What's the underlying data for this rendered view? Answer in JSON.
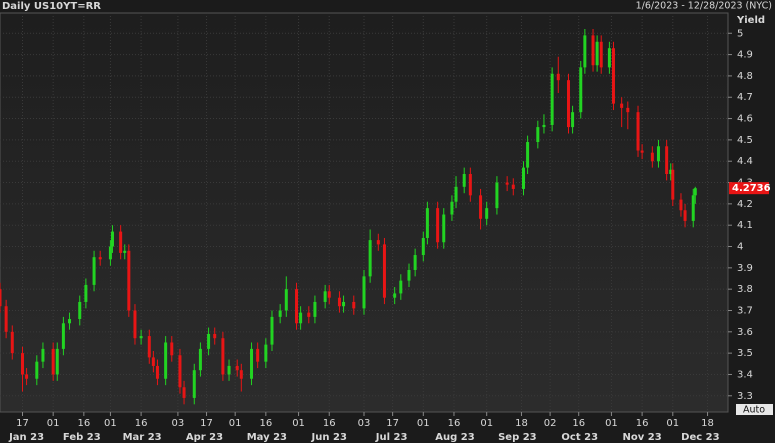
{
  "chart_data": {
    "type": "candlestick",
    "title": "Daily US10YT=RR",
    "subtitle": "1/6/2023 - 12/28/2023 (NYC)",
    "y_label": "Yield",
    "auto_label": "Auto",
    "up_color": "#22d422",
    "down_color": "#e81515",
    "last_color": "#e81515",
    "grid": true,
    "xlim": [
      "2023-01-06",
      "2023-12-28"
    ],
    "ylim": [
      3.224,
      5.095
    ],
    "yticks": [
      3.3,
      3.4,
      3.5,
      3.6,
      3.7,
      3.8,
      3.9,
      4,
      4.1,
      4.2,
      4.3,
      4.4,
      4.5,
      4.6,
      4.7,
      4.8,
      4.9,
      5
    ],
    "xticks": [
      {
        "value": "2023-01-17",
        "label": "17"
      },
      {
        "value": "2023-02-01",
        "label": "01"
      },
      {
        "value": "2023-02-16",
        "label": "16"
      },
      {
        "value": "2023-03-01",
        "label": "01"
      },
      {
        "value": "2023-03-16",
        "label": "16"
      },
      {
        "value": "2023-04-03",
        "label": "03"
      },
      {
        "value": "2023-04-17",
        "label": "17"
      },
      {
        "value": "2023-05-01",
        "label": "01"
      },
      {
        "value": "2023-05-16",
        "label": "16"
      },
      {
        "value": "2023-06-01",
        "label": "01"
      },
      {
        "value": "2023-06-16",
        "label": "16"
      },
      {
        "value": "2023-07-03",
        "label": "03"
      },
      {
        "value": "2023-07-17",
        "label": "17"
      },
      {
        "value": "2023-08-01",
        "label": "01"
      },
      {
        "value": "2023-08-16",
        "label": "16"
      },
      {
        "value": "2023-09-01",
        "label": "01"
      },
      {
        "value": "2023-09-18",
        "label": "18"
      },
      {
        "value": "2023-10-02",
        "label": "02"
      },
      {
        "value": "2023-10-16",
        "label": "16"
      },
      {
        "value": "2023-11-01",
        "label": "01"
      },
      {
        "value": "2023-11-16",
        "label": "16"
      },
      {
        "value": "2023-12-01",
        "label": "01"
      },
      {
        "value": "2023-12-18",
        "label": "18"
      }
    ],
    "month_labels": [
      {
        "value": "2023-01",
        "label": "Jan 23"
      },
      {
        "value": "2023-02",
        "label": "Feb 23"
      },
      {
        "value": "2023-03",
        "label": "Mar 23"
      },
      {
        "value": "2023-04",
        "label": "Apr 23"
      },
      {
        "value": "2023-05",
        "label": "May 23"
      },
      {
        "value": "2023-06",
        "label": "Jun 23"
      },
      {
        "value": "2023-07",
        "label": "Jul 23"
      },
      {
        "value": "2023-08",
        "label": "Aug 23"
      },
      {
        "value": "2023-09",
        "label": "Sep 23"
      },
      {
        "value": "2023-10",
        "label": "Oct 23"
      },
      {
        "value": "2023-11",
        "label": "Nov 23"
      },
      {
        "value": "2023-12",
        "label": "Dec 23"
      }
    ],
    "x": [
      "2023-01-06",
      "2023-01-09",
      "2023-01-12",
      "2023-01-17",
      "2023-01-19",
      "2023-01-24",
      "2023-01-27",
      "2023-02-01",
      "2023-02-03",
      "2023-02-06",
      "2023-02-09",
      "2023-02-14",
      "2023-02-17",
      "2023-02-21",
      "2023-02-24",
      "2023-03-01",
      "2023-03-02",
      "2023-03-06",
      "2023-03-08",
      "2023-03-10",
      "2023-03-13",
      "2023-03-16",
      "2023-03-20",
      "2023-03-22",
      "2023-03-24",
      "2023-03-28",
      "2023-03-31",
      "2023-04-04",
      "2023-04-06",
      "2023-04-11",
      "2023-04-14",
      "2023-04-18",
      "2023-04-21",
      "2023-04-25",
      "2023-04-28",
      "2023-05-02",
      "2023-05-04",
      "2023-05-09",
      "2023-05-12",
      "2023-05-16",
      "2023-05-19",
      "2023-05-23",
      "2023-05-26",
      "2023-05-31",
      "2023-06-02",
      "2023-06-06",
      "2023-06-09",
      "2023-06-14",
      "2023-06-16",
      "2023-06-21",
      "2023-06-23",
      "2023-06-28",
      "2023-07-03",
      "2023-07-06",
      "2023-07-10",
      "2023-07-13",
      "2023-07-18",
      "2023-07-21",
      "2023-07-25",
      "2023-07-28",
      "2023-08-01",
      "2023-08-03",
      "2023-08-08",
      "2023-08-11",
      "2023-08-15",
      "2023-08-17",
      "2023-08-21",
      "2023-08-24",
      "2023-08-29",
      "2023-09-01",
      "2023-09-06",
      "2023-09-11",
      "2023-09-14",
      "2023-09-19",
      "2023-09-21",
      "2023-09-26",
      "2023-09-29",
      "2023-10-03",
      "2023-10-06",
      "2023-10-11",
      "2023-10-13",
      "2023-10-17",
      "2023-10-19",
      "2023-10-23",
      "2023-10-25",
      "2023-10-27",
      "2023-10-31",
      "2023-11-02",
      "2023-11-06",
      "2023-11-09",
      "2023-11-14",
      "2023-11-16",
      "2023-11-21",
      "2023-11-24",
      "2023-11-28",
      "2023-11-30",
      "2023-12-01",
      "2023-12-05",
      "2023-12-07",
      "2023-12-11",
      "2023-12-12"
    ],
    "open": [
      3.8,
      3.72,
      3.6,
      3.5,
      3.4,
      3.38,
      3.46,
      3.52,
      3.4,
      3.52,
      3.64,
      3.66,
      3.74,
      3.82,
      3.95,
      3.94,
      4.0,
      4.07,
      3.97,
      3.98,
      3.7,
      3.57,
      3.58,
      3.48,
      3.44,
      3.38,
      3.55,
      3.49,
      3.34,
      3.29,
      3.42,
      3.52,
      3.59,
      3.57,
      3.4,
      3.44,
      3.42,
      3.38,
      3.52,
      3.46,
      3.54,
      3.67,
      3.7,
      3.8,
      3.64,
      3.69,
      3.67,
      3.74,
      3.79,
      3.76,
      3.72,
      3.74,
      3.71,
      3.86,
      4.03,
      4.01,
      3.76,
      3.78,
      3.84,
      3.89,
      3.96,
      4.04,
      4.18,
      4.02,
      4.15,
      4.21,
      4.28,
      4.34,
      4.24,
      4.13,
      4.18,
      4.3,
      4.29,
      4.27,
      4.37,
      4.49,
      4.56,
      4.57,
      4.81,
      4.78,
      4.56,
      4.63,
      4.84,
      4.99,
      4.85,
      4.96,
      4.84,
      4.93,
      4.67,
      4.65,
      4.63,
      4.45,
      4.44,
      4.4,
      4.47,
      4.34,
      4.36,
      4.22,
      4.17,
      4.12,
      4.24
    ],
    "high": [
      3.83,
      3.75,
      3.63,
      3.53,
      3.43,
      3.49,
      3.55,
      3.55,
      3.55,
      3.67,
      3.69,
      3.77,
      3.85,
      3.98,
      3.98,
      4.03,
      4.1,
      4.1,
      4.01,
      4.01,
      3.73,
      3.61,
      3.61,
      3.51,
      3.47,
      3.58,
      3.58,
      3.52,
      3.37,
      3.45,
      3.55,
      3.62,
      3.62,
      3.6,
      3.47,
      3.47,
      3.45,
      3.55,
      3.55,
      3.57,
      3.7,
      3.73,
      3.86,
      3.83,
      3.72,
      3.72,
      3.77,
      3.82,
      3.82,
      3.79,
      3.77,
      3.77,
      3.89,
      4.08,
      4.06,
      4.04,
      3.81,
      3.87,
      3.92,
      3.99,
      4.07,
      4.21,
      4.21,
      4.18,
      4.24,
      4.33,
      4.37,
      4.37,
      4.27,
      4.21,
      4.33,
      4.33,
      4.32,
      4.4,
      4.52,
      4.59,
      4.62,
      4.84,
      4.89,
      4.81,
      4.66,
      4.87,
      5.02,
      5.02,
      4.99,
      4.99,
      4.96,
      4.96,
      4.7,
      4.68,
      4.66,
      4.48,
      4.47,
      4.5,
      4.5,
      4.39,
      4.39,
      4.25,
      4.2,
      4.27,
      4.28
    ],
    "low": [
      3.69,
      3.57,
      3.47,
      3.32,
      3.35,
      3.35,
      3.43,
      3.37,
      3.37,
      3.49,
      3.61,
      3.63,
      3.71,
      3.79,
      3.91,
      3.91,
      3.97,
      3.94,
      3.94,
      3.67,
      3.54,
      3.54,
      3.45,
      3.41,
      3.35,
      3.35,
      3.46,
      3.31,
      3.26,
      3.26,
      3.39,
      3.49,
      3.54,
      3.37,
      3.37,
      3.39,
      3.32,
      3.35,
      3.43,
      3.43,
      3.51,
      3.64,
      3.67,
      3.61,
      3.61,
      3.64,
      3.64,
      3.71,
      3.73,
      3.69,
      3.69,
      3.68,
      3.68,
      3.83,
      3.98,
      3.73,
      3.73,
      3.75,
      3.81,
      3.86,
      3.93,
      4.01,
      3.99,
      3.99,
      4.12,
      4.18,
      4.25,
      4.21,
      4.08,
      4.1,
      4.15,
      4.26,
      4.24,
      4.24,
      4.34,
      4.46,
      4.53,
      4.54,
      4.72,
      4.53,
      4.53,
      4.6,
      4.81,
      4.82,
      4.82,
      4.81,
      4.81,
      4.64,
      4.56,
      4.55,
      4.42,
      4.41,
      4.37,
      4.37,
      4.31,
      4.31,
      4.19,
      4.14,
      4.09,
      4.09,
      4.2
    ],
    "close": [
      3.72,
      3.6,
      3.5,
      3.4,
      3.38,
      3.46,
      3.52,
      3.4,
      3.52,
      3.64,
      3.66,
      3.74,
      3.82,
      3.95,
      3.94,
      4.0,
      4.07,
      3.97,
      3.98,
      3.7,
      3.57,
      3.58,
      3.48,
      3.44,
      3.38,
      3.55,
      3.49,
      3.34,
      3.29,
      3.42,
      3.52,
      3.59,
      3.57,
      3.4,
      3.44,
      3.42,
      3.38,
      3.52,
      3.46,
      3.54,
      3.67,
      3.7,
      3.8,
      3.64,
      3.69,
      3.67,
      3.74,
      3.79,
      3.76,
      3.72,
      3.74,
      3.71,
      3.86,
      4.03,
      4.01,
      3.76,
      3.78,
      3.84,
      3.89,
      3.96,
      4.04,
      4.18,
      4.02,
      4.15,
      4.21,
      4.28,
      4.34,
      4.24,
      4.13,
      4.18,
      4.3,
      4.29,
      4.27,
      4.37,
      4.49,
      4.56,
      4.57,
      4.81,
      4.78,
      4.56,
      4.63,
      4.84,
      4.99,
      4.85,
      4.96,
      4.84,
      4.93,
      4.67,
      4.65,
      4.63,
      4.45,
      4.44,
      4.4,
      4.47,
      4.34,
      4.36,
      4.22,
      4.17,
      4.12,
      4.24,
      4.2736
    ]
  }
}
